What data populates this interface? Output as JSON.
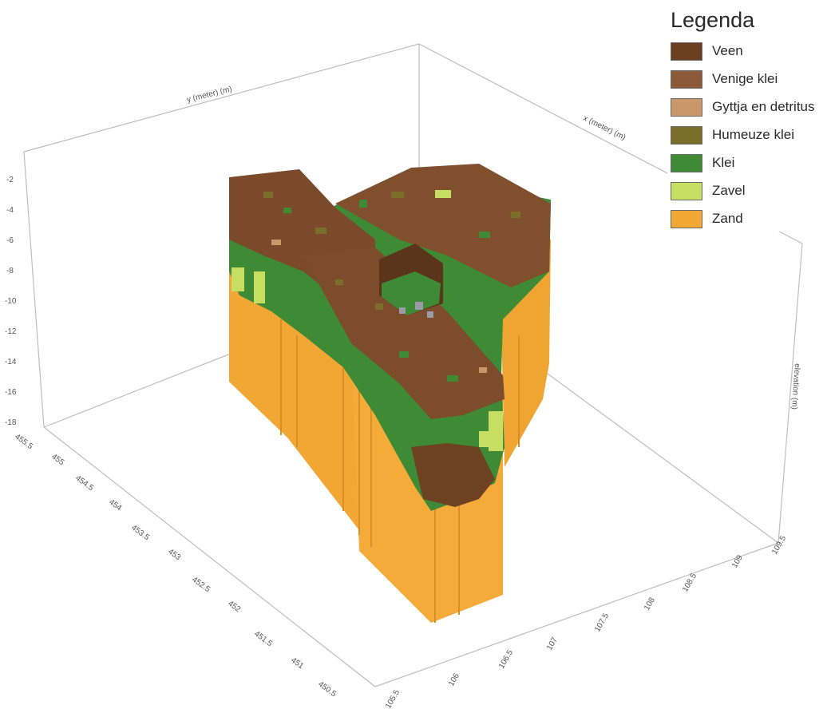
{
  "legend": {
    "title": "Legenda",
    "items": [
      {
        "label": "Veen",
        "color": "#6b3f1f"
      },
      {
        "label": "Venige klei",
        "color": "#8c5a38"
      },
      {
        "label": "Gyttja en detritus",
        "color": "#c9976a"
      },
      {
        "label": "Humeuze klei",
        "color": "#7a6e2a"
      },
      {
        "label": "Klei",
        "color": "#3f8a34"
      },
      {
        "label": "Zavel",
        "color": "#c6de62"
      },
      {
        "label": "Zand",
        "color": "#f2a735"
      }
    ]
  },
  "axes": {
    "elevation_label": "elevation (m)",
    "elevation_ticks": [
      "-2",
      "-4",
      "-6",
      "-8",
      "-10",
      "-12",
      "-14",
      "-16",
      "-18"
    ],
    "left_ticks": [
      "455.5",
      "455",
      "454.5",
      "454",
      "453.5",
      "453",
      "452.5",
      "452",
      "451.5",
      "451",
      "450.5"
    ],
    "right_ticks": [
      "105.5",
      "106",
      "106.5",
      "107",
      "107.5",
      "108",
      "108.5",
      "109",
      "109.5"
    ],
    "back_left_label": "y (meter) (m)",
    "back_right_label": "x (meter) (m)"
  }
}
